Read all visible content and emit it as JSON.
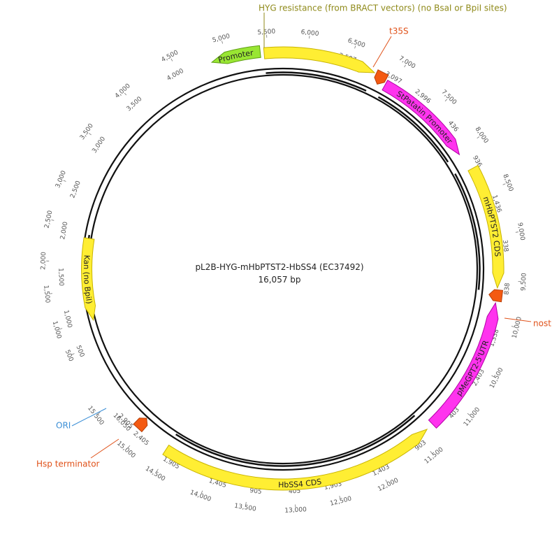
{
  "plasmid": {
    "name": "pL2B-HYG-mHbPTST2-HbSS4 (EC37492)",
    "length_label": "16,057 bp"
  },
  "colors": {
    "yellow": "#FFEE33",
    "yellow_stroke": "#C9B400",
    "magenta": "#FF33EE",
    "magenta_stroke": "#B300A6",
    "green": "#99E633",
    "green_stroke": "#5E9E12",
    "orange": "#F45A12",
    "orange_stroke": "#B8400A",
    "backbone": "#111111",
    "olive_text": "#8F8A1A",
    "orange_text": "#E0521A",
    "blue_text": "#3A8ED6"
  },
  "features": [
    {
      "name": "HYG resistance",
      "label": "",
      "kind": "arrow",
      "color": "yellow",
      "direction": "cw"
    },
    {
      "name": "t35S",
      "label": "",
      "kind": "terminator",
      "color": "orange"
    },
    {
      "name": "StPatatin Promoter",
      "label": "StPatatin Promoter",
      "kind": "arrow",
      "color": "magenta",
      "direction": "cw"
    },
    {
      "name": "mHbPTST2 CDS",
      "label": "mHbPTST2 CDS",
      "kind": "arrow",
      "color": "yellow",
      "direction": "cw"
    },
    {
      "name": "nost",
      "label": "",
      "kind": "terminator",
      "color": "orange"
    },
    {
      "name": "pMeGPT2-5'UTR",
      "label": "pMeGPT2-5'UTR",
      "kind": "arrow",
      "color": "magenta",
      "direction": "ccw"
    },
    {
      "name": "HbSS4 CDS",
      "label": "HbSS4 CDS",
      "kind": "arrow",
      "color": "yellow",
      "direction": "ccw"
    },
    {
      "name": "Hsp terminator",
      "label": "",
      "kind": "terminator",
      "color": "orange"
    },
    {
      "name": "Kan (no BpiI)",
      "label": "Kan (no BpiI)",
      "kind": "arrow",
      "color": "yellow",
      "direction": "ccw"
    },
    {
      "name": "Promoter",
      "label": "Promoter",
      "kind": "arrow",
      "color": "green",
      "direction": "ccw"
    }
  ],
  "callouts": [
    {
      "name": "hyg-callout",
      "text": "HYG resistance (from BRACT vectors) (no BsaI or BpiI sites)",
      "color": "olive_text"
    },
    {
      "name": "t35s-callout",
      "text": "t35S",
      "color": "orange_text"
    },
    {
      "name": "nost-callout",
      "text": "nost",
      "color": "orange_text"
    },
    {
      "name": "ori-callout",
      "text": "ORI",
      "color": "blue_text"
    },
    {
      "name": "hsp-callout",
      "text": "Hsp terminator",
      "color": "orange_text"
    }
  ],
  "outer_ticks": [
    "500",
    "1,000",
    "1,500",
    "2,000",
    "2,500",
    "3,000",
    "3,500",
    "4,000",
    "4,500",
    "5,000",
    "5,500",
    "6,000",
    "6,500",
    "7,000",
    "7,500",
    "8,000",
    "8,500",
    "9,000",
    "9,500",
    "10,000",
    "10,500",
    "11,000",
    "11,500",
    "12,000",
    "12,500",
    "13,000",
    "13,500",
    "14,000",
    "14,500",
    "15,000",
    "15,500",
    "16,050"
  ],
  "inner_ticks": [
    "500",
    "1,000",
    "1,500",
    "2,000",
    "2,500",
    "3,000",
    "3,500",
    "4,000",
    "4,500",
    "132",
    "632",
    "2,597",
    "3,097",
    "2,996",
    "436",
    "936",
    "1,436",
    "338",
    "838",
    "1,338",
    "2,403",
    "403",
    "903",
    "1,403",
    "1,903",
    "405",
    "905",
    "1,405",
    "1,905",
    "2,405",
    "2,905",
    "1,871"
  ]
}
